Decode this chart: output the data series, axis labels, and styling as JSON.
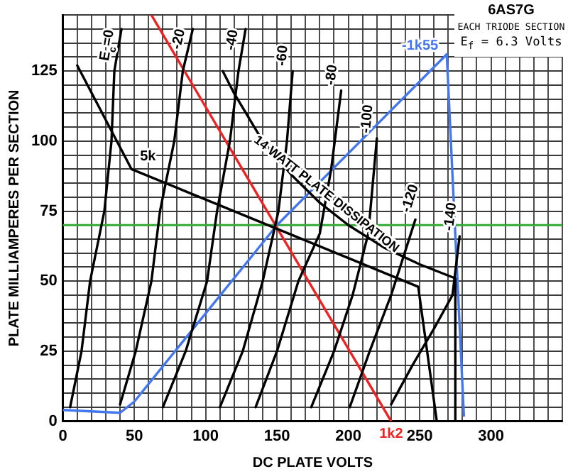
{
  "chart_data": {
    "type": "line",
    "title": "6AS7G",
    "subtitle": "EACH TRIODE SECTION",
    "xlabel": "DC PLATE VOLTS",
    "ylabel": "PLATE MILLIAMPERES PER SECTION",
    "xlim": [
      0,
      350
    ],
    "ylim": [
      0,
      145
    ],
    "xticks": [
      0,
      {
        "value": 10,
        "label": null
      },
      {
        "value": 20,
        "label": null
      },
      {
        "value": 30,
        "label": null
      },
      {
        "value": 40,
        "label": null
      },
      50,
      {
        "value": 60,
        "label": null
      },
      {
        "value": 70,
        "label": null
      },
      {
        "value": 80,
        "label": null
      },
      {
        "value": 90,
        "label": null
      },
      100,
      {
        "value": 110,
        "label": null
      },
      {
        "value": 120,
        "label": null
      },
      {
        "value": 130,
        "label": null
      },
      {
        "value": 140,
        "label": null
      },
      150,
      {
        "value": 160,
        "label": null
      },
      {
        "value": 170,
        "label": null
      },
      {
        "value": 180,
        "label": null
      },
      {
        "value": 190,
        "label": null
      },
      200,
      {
        "value": 210,
        "label": null
      },
      {
        "value": 220,
        "label": null
      },
      {
        "value": 230,
        "label": null
      },
      {
        "value": 240,
        "label": null
      },
      250,
      {
        "value": 260,
        "label": null
      },
      {
        "value": 270,
        "label": null
      },
      {
        "value": 280,
        "label": null
      },
      {
        "value": 290,
        "label": null
      },
      300,
      {
        "value": 310,
        "label": null
      },
      {
        "value": 320,
        "label": null
      },
      {
        "value": 330,
        "label": null
      },
      {
        "value": 340,
        "label": null
      },
      {
        "value": 350,
        "label": null
      }
    ],
    "yticks": [
      0,
      {
        "value": 5,
        "label": null
      },
      {
        "value": 10,
        "label": null
      },
      {
        "value": 15,
        "label": null
      },
      {
        "value": 20,
        "label": null
      },
      25,
      {
        "value": 30,
        "label": null
      },
      {
        "value": 35,
        "label": null
      },
      {
        "value": 40,
        "label": null
      },
      {
        "value": 45,
        "label": null
      },
      50,
      {
        "value": 55,
        "label": null
      },
      {
        "value": 60,
        "label": null
      },
      {
        "value": 65,
        "label": null
      },
      {
        "value": 70,
        "label": null
      },
      75,
      {
        "value": 80,
        "label": null
      },
      {
        "value": 85,
        "label": null
      },
      {
        "value": 90,
        "label": null
      },
      {
        "value": 95,
        "label": null
      },
      100,
      {
        "value": 105,
        "label": null
      },
      {
        "value": 110,
        "label": null
      },
      {
        "value": 115,
        "label": null
      },
      {
        "value": 120,
        "label": null
      },
      125,
      {
        "value": 130,
        "label": null
      },
      {
        "value": 135,
        "label": null
      },
      {
        "value": 140,
        "label": null
      },
      {
        "value": 145,
        "label": null
      }
    ],
    "grid": true,
    "legend": false,
    "series": [
      {
        "name": "E$_{c}$=0",
        "color": "#000000",
        "x": [
          5,
          13,
          19,
          29,
          34,
          36,
          41
        ],
        "values": [
          5,
          25,
          50,
          75,
          100,
          125,
          140
        ]
      },
      {
        "name": "-20",
        "color": "#000000",
        "x": [
          40,
          51,
          62,
          68,
          78,
          84,
          91
        ],
        "values": [
          6,
          25,
          50,
          75,
          100,
          125,
          140
        ]
      },
      {
        "name": "-40",
        "color": "#000000",
        "x": [
          70,
          86,
          101,
          108,
          117,
          123,
          128
        ],
        "values": [
          5,
          25,
          50,
          75,
          100,
          125,
          140
        ]
      },
      {
        "name": "-60",
        "color": "#000000",
        "x": [
          110,
          126,
          140,
          151,
          157,
          161
        ],
        "values": [
          5,
          25,
          50,
          75,
          100,
          125
        ]
      },
      {
        "name": "-80",
        "color": "#000000",
        "x": [
          135,
          150,
          165,
          180,
          188,
          195
        ],
        "values": [
          5,
          25,
          50,
          67,
          90,
          118
        ]
      },
      {
        "name": "-100",
        "color": "#000000",
        "x": [
          174,
          190,
          203,
          214,
          220
        ],
        "values": [
          5,
          25,
          45,
          67,
          101
        ]
      },
      {
        "name": "-120",
        "color": "#000000",
        "x": [
          201,
          215,
          230,
          247
        ],
        "values": [
          5,
          25,
          45,
          72
        ]
      },
      {
        "name": "-140",
        "color": "#000000",
        "x": [
          230,
          245,
          260,
          273,
          278
        ],
        "values": [
          6,
          20,
          33,
          45,
          66
        ]
      },
      {
        "color": "#000000",
        "x": [
          112,
          120,
          140,
          160,
          180,
          200,
          225,
          250,
          275,
          275
        ],
        "values": [
          125,
          117,
          100,
          88,
          78,
          70,
          62,
          56,
          51,
          0
        ]
      },
      {
        "color": "#000000",
        "x": [
          10,
          48,
          249,
          262
        ],
        "values": [
          127,
          90,
          48,
          0
        ]
      },
      {
        "color": "#ee2222",
        "x": [
          62,
          230
        ],
        "values": [
          145,
          0
        ]
      },
      {
        "color": "#4477ee",
        "x": [
          0,
          40,
          50,
          150,
          269,
          281
        ],
        "values": [
          4,
          3,
          7,
          70,
          131,
          2
        ]
      }
    ],
    "ref_lines": [
      {
        "axis": "y",
        "value": 70,
        "color": "#33aa33"
      }
    ],
    "annotations": [
      "E$_{f}$ = 6.3 Volts",
      {
        "text": "14 WATT PLATE DISSIPATION",
        "x": 180,
        "y": 78
      },
      {
        "text": "5k",
        "x": 48,
        "y": 90
      },
      {
        "text": "1k2",
        "x": 230,
        "y": 0
      },
      {
        "text": "-1k55",
        "x": 269,
        "y": 131
      }
    ]
  }
}
